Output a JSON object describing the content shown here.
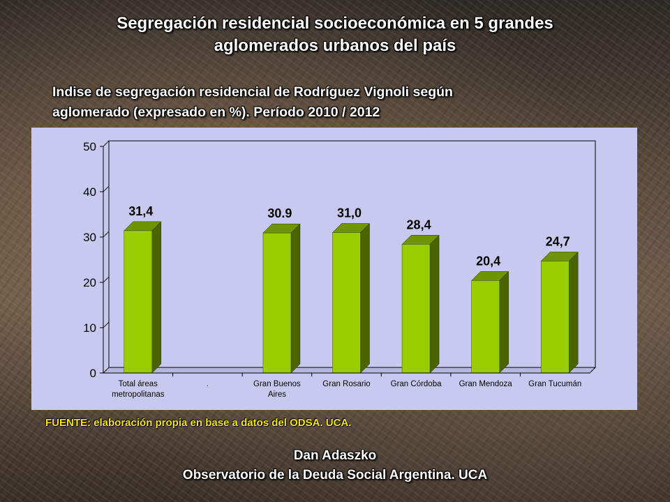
{
  "slide": {
    "title_line1": "Segregación residencial socioeconómica en 5 grandes",
    "title_line2": "aglomerados urbanos del país",
    "source": "FUENTE: elaboración propia en base a datos del ODSA. UCA.",
    "author": "Dan Adaszko",
    "organization": "Observatorio de la Deuda Social Argentina. UCA"
  },
  "chart_data": {
    "type": "bar",
    "title": "Indise de segregación residencial de Rodríguez Vignoli según",
    "title_line2": "aglomerado (expresado en %). Período 2010 / 2012",
    "categories": [
      [
        "Total áreas",
        "metropolitanas"
      ],
      [
        "."
      ],
      [
        "Gran Buenos",
        "Aires"
      ],
      [
        "Gran Rosario"
      ],
      [
        "Gran Córdoba"
      ],
      [
        "Gran Mendoza"
      ],
      [
        "Gran Tucumán"
      ]
    ],
    "values": [
      31.4,
      null,
      30.9,
      31.0,
      28.4,
      20.4,
      24.7
    ],
    "data_labels": [
      "31,4",
      "",
      "30.9",
      "31,0",
      "28,4",
      "20,4",
      "24,7"
    ],
    "ylim": [
      0,
      50
    ],
    "yticks": [
      "0",
      "10",
      "20",
      "30",
      "40",
      "50"
    ],
    "grid": false,
    "legend": "none",
    "colors": {
      "bar_face": "#9acd00",
      "bar_side": "#4a6400",
      "bar_top": "#6e9400",
      "panel": "#c9c9ef"
    }
  }
}
